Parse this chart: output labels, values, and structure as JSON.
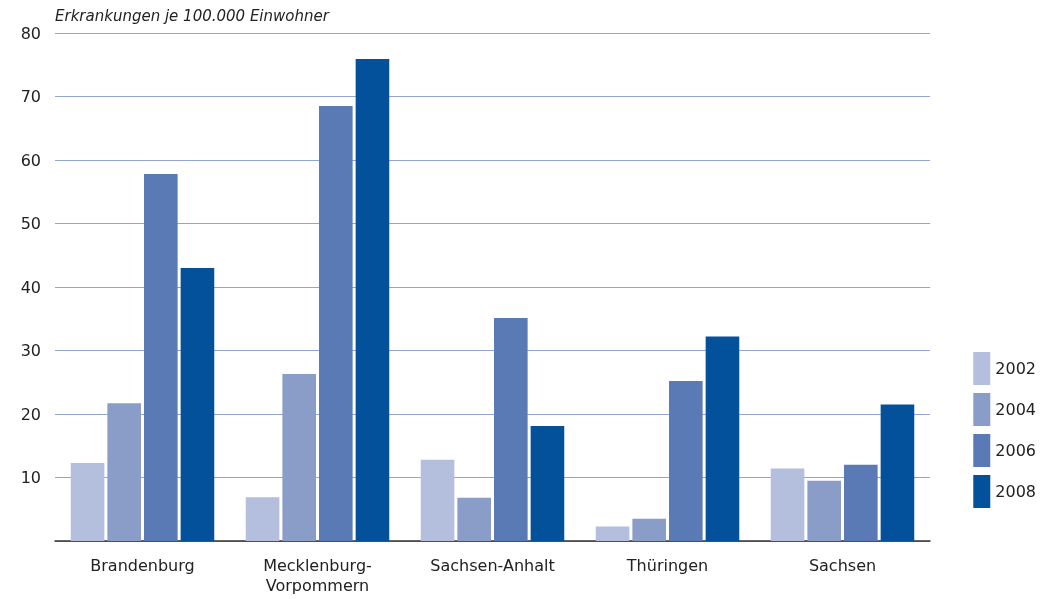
{
  "chart_data": {
    "type": "bar",
    "ylabel": "Erkrankungen je 100.000 Einwohner",
    "categories": [
      "Brandenburg",
      "Mecklenburg-Vorpommern",
      "Sachsen-Anhalt",
      "Thüringen",
      "Sachsen"
    ],
    "series": [
      {
        "name": "2002",
        "color": "#b4bedd",
        "values": [
          12.3,
          6.9,
          12.8,
          2.3,
          11.4
        ]
      },
      {
        "name": "2004",
        "color": "#8a9cc8",
        "values": [
          21.7,
          26.3,
          6.8,
          3.5,
          9.5
        ]
      },
      {
        "name": "2006",
        "color": "#5a7ab5",
        "values": [
          57.8,
          68.5,
          35.1,
          25.2,
          12
        ]
      },
      {
        "name": "2008",
        "color": "#03519b",
        "values": [
          43,
          75.9,
          18.1,
          32.2,
          21.5
        ]
      }
    ],
    "ylim": [
      0,
      80
    ],
    "yticks": [
      {
        "value": 0,
        "label": null
      },
      10,
      20,
      30,
      40,
      50,
      60,
      70,
      80
    ],
    "grid": "y",
    "legend": "right"
  }
}
